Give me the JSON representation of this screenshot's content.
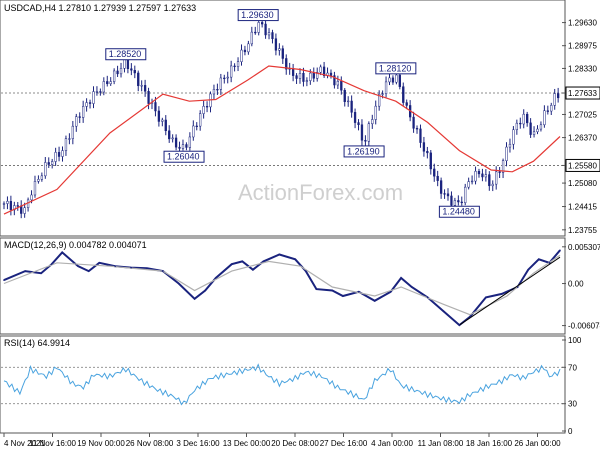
{
  "header": {
    "symbol_line": "USDCAD,H4  1.27810 1.27939 1.27597 1.27633",
    "macd_line": "MACD(12,26,9) 0.004782 0.004071",
    "rsi_line": "RSI(14) 64.9914"
  },
  "watermark": "ActionForex.com",
  "colors": {
    "candles": "#1a237e",
    "ema": "#e53935",
    "macd_main": "#1a237e",
    "macd_signal": "#b0b0b0",
    "rsi": "#4aa3df",
    "trendline": "#000000",
    "level_dotted": "#666666",
    "current_price_box": "#000000"
  },
  "chart_data": [
    {
      "type": "candlestick",
      "title": "USDCAD,H4",
      "ohlc_last": {
        "open": 1.2781,
        "high": 1.27939,
        "low": 1.27597,
        "close": 1.27633
      },
      "ylim": [
        1.2375,
        1.301
      ],
      "y_ticks": [
        "1.29630",
        "1.28975",
        "1.28330",
        "1.27633",
        "1.27025",
        "1.26370",
        "1.25580",
        "1.25080",
        "1.24415",
        "1.23755"
      ],
      "y_tick_values": [
        1.2963,
        1.28975,
        1.2833,
        1.27633,
        1.27025,
        1.2637,
        1.2558,
        1.2508,
        1.24415,
        1.23755
      ],
      "highlighted_ticks": [
        "1.27633",
        "1.25580"
      ],
      "horizontal_levels": [
        1.27633,
        1.2558
      ],
      "x_ticks": [
        "4 Nov 2021",
        "11 Nov 16:00",
        "19 Nov 00:00",
        "26 Nov 08:00",
        "3 Dec 16:00",
        "13 Dec 00:00",
        "20 Dec 08:00",
        "27 Dec 16:00",
        "4 Jan 00:00",
        "11 Jan 08:00",
        "18 Jan 16:00",
        "26 Jan 00:00"
      ],
      "price_path": [
        [
          0,
          1.245
        ],
        [
          8,
          1.243
        ],
        [
          10,
          1.248
        ],
        [
          16,
          1.256
        ],
        [
          22,
          1.26
        ],
        [
          28,
          1.27
        ],
        [
          34,
          1.276
        ],
        [
          40,
          1.28
        ],
        [
          46,
          1.2852
        ],
        [
          52,
          1.278
        ],
        [
          58,
          1.27
        ],
        [
          64,
          1.262
        ],
        [
          68,
          1.2604
        ],
        [
          74,
          1.27
        ],
        [
          80,
          1.278
        ],
        [
          86,
          1.283
        ],
        [
          92,
          1.29
        ],
        [
          96,
          1.2963
        ],
        [
          100,
          1.293
        ],
        [
          104,
          1.288
        ],
        [
          108,
          1.282
        ],
        [
          114,
          1.28
        ],
        [
          120,
          1.283
        ],
        [
          126,
          1.279
        ],
        [
          132,
          1.27
        ],
        [
          136,
          1.2619
        ],
        [
          140,
          1.272
        ],
        [
          144,
          1.279
        ],
        [
          148,
          1.2812
        ],
        [
          152,
          1.272
        ],
        [
          156,
          1.265
        ],
        [
          160,
          1.258
        ],
        [
          164,
          1.25
        ],
        [
          168,
          1.246
        ],
        [
          172,
          1.2448
        ],
        [
          176,
          1.252
        ],
        [
          180,
          1.254
        ],
        [
          184,
          1.25
        ],
        [
          188,
          1.256
        ],
        [
          192,
          1.265
        ],
        [
          196,
          1.27
        ],
        [
          200,
          1.264
        ],
        [
          204,
          1.27
        ],
        [
          208,
          1.275
        ],
        [
          210,
          1.2763
        ]
      ],
      "ema_path": [
        [
          0,
          1.242
        ],
        [
          20,
          1.249
        ],
        [
          40,
          1.265
        ],
        [
          60,
          1.276
        ],
        [
          70,
          1.274
        ],
        [
          80,
          1.2745
        ],
        [
          92,
          1.28
        ],
        [
          100,
          1.284
        ],
        [
          112,
          1.283
        ],
        [
          124,
          1.281
        ],
        [
          136,
          1.277
        ],
        [
          148,
          1.274
        ],
        [
          160,
          1.268
        ],
        [
          172,
          1.26
        ],
        [
          184,
          1.2545
        ],
        [
          192,
          1.254
        ],
        [
          200,
          1.257
        ],
        [
          210,
          1.264
        ]
      ],
      "labels": [
        {
          "text": "1.28520",
          "x": 46,
          "y": 1.2852
        },
        {
          "text": "1.26040",
          "x": 68,
          "y": 1.2604
        },
        {
          "text": "1.29630",
          "x": 96,
          "y": 1.2963
        },
        {
          "text": "1.26190",
          "x": 136,
          "y": 1.2619
        },
        {
          "text": "1.28120",
          "x": 148,
          "y": 1.2812
        },
        {
          "text": "1.24480",
          "x": 172,
          "y": 1.2448
        }
      ]
    },
    {
      "type": "line",
      "title": "MACD(12,26,9)",
      "ylim": [
        -0.007,
        0.006
      ],
      "y_ticks": [
        "0.005307",
        "0.00",
        "-0.006074"
      ],
      "y_tick_values": [
        0.005307,
        0.0,
        -0.006074
      ],
      "series": [
        {
          "name": "MACD main",
          "points": [
            [
              0,
              0.0005
            ],
            [
              8,
              0.0018
            ],
            [
              14,
              0.0015
            ],
            [
              18,
              0.0028
            ],
            [
              22,
              0.0045
            ],
            [
              28,
              0.0025
            ],
            [
              32,
              0.0018
            ],
            [
              36,
              0.003
            ],
            [
              42,
              0.0025
            ],
            [
              48,
              0.0023
            ],
            [
              54,
              0.0022
            ],
            [
              60,
              0.0018
            ],
            [
              66,
              0.0
            ],
            [
              72,
              -0.0022
            ],
            [
              76,
              -0.001
            ],
            [
              80,
              0.0008
            ],
            [
              86,
              0.0028
            ],
            [
              90,
              0.0032
            ],
            [
              94,
              0.002
            ],
            [
              98,
              0.0032
            ],
            [
              104,
              0.0042
            ],
            [
              110,
              0.0035
            ],
            [
              114,
              0.0018
            ],
            [
              118,
              -0.0008
            ],
            [
              124,
              -0.001
            ],
            [
              128,
              -0.0018
            ],
            [
              134,
              -0.0012
            ],
            [
              140,
              -0.0025
            ],
            [
              146,
              -0.0012
            ],
            [
              150,
              0.0008
            ],
            [
              154,
              -0.0005
            ],
            [
              160,
              -0.002
            ],
            [
              166,
              -0.004
            ],
            [
              172,
              -0.006
            ],
            [
              176,
              -0.0048
            ],
            [
              182,
              -0.002
            ],
            [
              188,
              -0.0015
            ],
            [
              194,
              -0.0005
            ],
            [
              198,
              0.002
            ],
            [
              202,
              0.0035
            ],
            [
              206,
              0.003
            ],
            [
              210,
              0.0048
            ]
          ]
        },
        {
          "name": "MACD signal",
          "points": [
            [
              0,
              0.0
            ],
            [
              20,
              0.003
            ],
            [
              40,
              0.0025
            ],
            [
              60,
              0.0018
            ],
            [
              72,
              -0.001
            ],
            [
              86,
              0.0018
            ],
            [
              100,
              0.0032
            ],
            [
              112,
              0.0025
            ],
            [
              124,
              -0.0005
            ],
            [
              140,
              -0.0018
            ],
            [
              150,
              -0.0005
            ],
            [
              166,
              -0.003
            ],
            [
              176,
              -0.0045
            ],
            [
              190,
              -0.0018
            ],
            [
              200,
              0.0015
            ],
            [
              210,
              0.0041
            ]
          ]
        },
        {
          "name": "Trendline",
          "points": [
            [
              172,
              -0.006
            ],
            [
              210,
              0.0038
            ]
          ]
        }
      ]
    },
    {
      "type": "line",
      "title": "RSI(14)",
      "ylim": [
        0,
        100
      ],
      "y_ticks": [
        "100",
        "70",
        "30",
        "0"
      ],
      "y_tick_values": [
        100,
        70,
        30,
        0
      ],
      "reference_lines": [
        70,
        30
      ],
      "series": [
        {
          "name": "RSI",
          "points": [
            [
              0,
              55
            ],
            [
              6,
              42
            ],
            [
              10,
              68
            ],
            [
              16,
              60
            ],
            [
              20,
              70
            ],
            [
              26,
              52
            ],
            [
              30,
              48
            ],
            [
              34,
              62
            ],
            [
              40,
              60
            ],
            [
              46,
              68
            ],
            [
              52,
              55
            ],
            [
              58,
              45
            ],
            [
              64,
              38
            ],
            [
              68,
              30
            ],
            [
              72,
              45
            ],
            [
              78,
              58
            ],
            [
              84,
              62
            ],
            [
              90,
              66
            ],
            [
              96,
              70
            ],
            [
              100,
              60
            ],
            [
              104,
              52
            ],
            [
              110,
              58
            ],
            [
              114,
              65
            ],
            [
              120,
              60
            ],
            [
              126,
              48
            ],
            [
              132,
              40
            ],
            [
              136,
              34
            ],
            [
              140,
              55
            ],
            [
              146,
              68
            ],
            [
              150,
              50
            ],
            [
              156,
              44
            ],
            [
              160,
              40
            ],
            [
              166,
              35
            ],
            [
              172,
              32
            ],
            [
              176,
              40
            ],
            [
              182,
              48
            ],
            [
              188,
              55
            ],
            [
              192,
              62
            ],
            [
              196,
              58
            ],
            [
              200,
              65
            ],
            [
              204,
              70
            ],
            [
              206,
              60
            ],
            [
              210,
              65
            ]
          ]
        }
      ]
    }
  ]
}
